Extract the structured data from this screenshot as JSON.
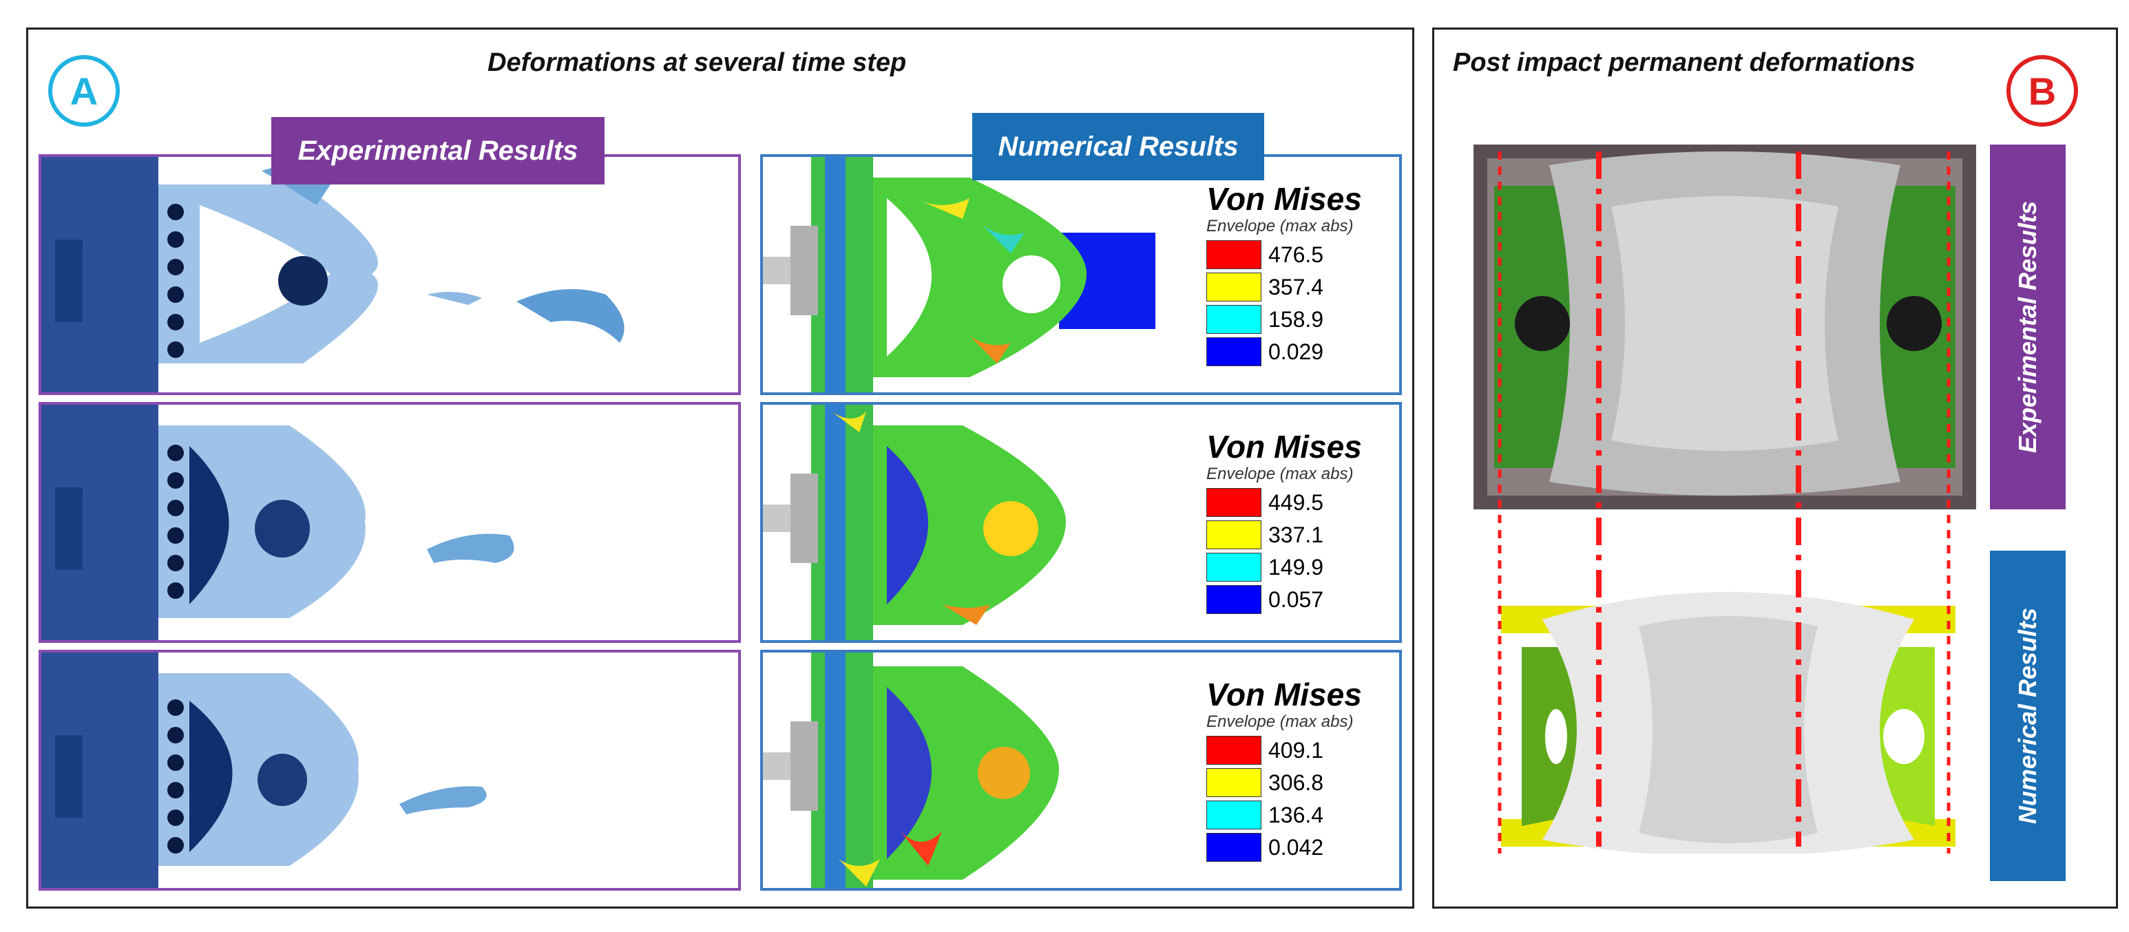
{
  "panel_a": {
    "label": "A",
    "title": "Deformations at several time step",
    "experimental_tag": "Experimental Results",
    "numerical_tag": "Numerical Results",
    "legends": [
      {
        "title": "Von Mises",
        "subtitle": "Envelope (max abs)",
        "values": [
          "476.5",
          "357.4",
          "158.9",
          "0.029"
        ]
      },
      {
        "title": "Von Mises",
        "subtitle": "Envelope (max abs)",
        "values": [
          "449.5",
          "337.1",
          "149.9",
          "0.057"
        ]
      },
      {
        "title": "Von Mises",
        "subtitle": "Envelope (max abs)",
        "values": [
          "409.1",
          "306.8",
          "136.4",
          "0.042"
        ]
      }
    ]
  },
  "panel_b": {
    "label": "B",
    "title": "Post impact permanent deformations",
    "experimental_tag": "Experimental Results",
    "numerical_tag": "Numerical Results"
  },
  "colors": {
    "experimental": "#7b3a9a",
    "numerical": "#1a6fb5",
    "legend": [
      "#ff0000",
      "#ffff00",
      "#00ffff",
      "#0000ff"
    ],
    "label_a": "#1fb3e0",
    "label_b": "#e02020"
  }
}
